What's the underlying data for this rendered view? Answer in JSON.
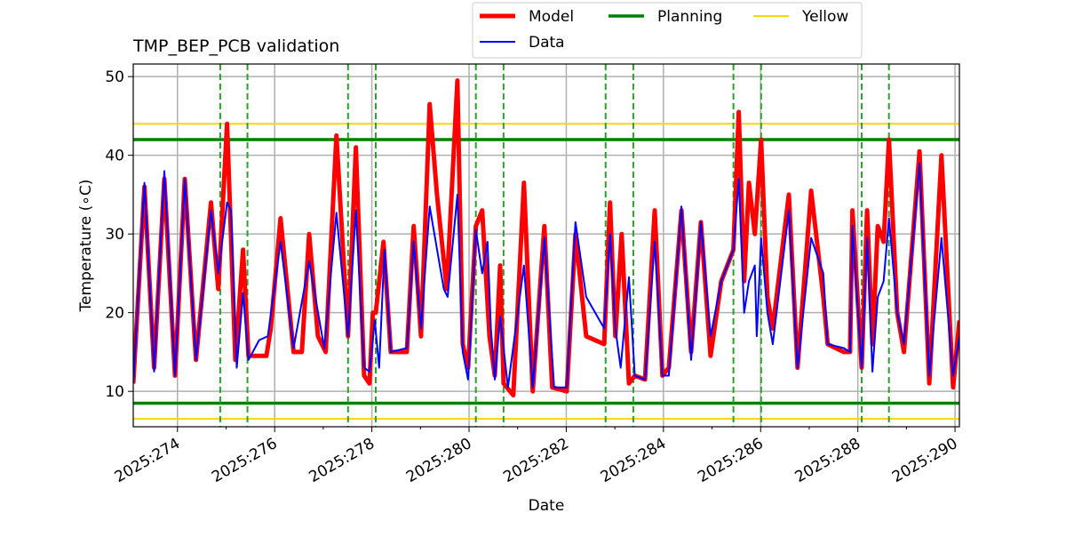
{
  "chart_data": {
    "type": "line",
    "title": "TMP_BEP_PCB validation",
    "xlabel": "Date",
    "ylabel": "Temperature ($^\\circ$C)",
    "ylabel_display": "Temperature (∘C)",
    "xlim": [
      273.09,
      290.09
    ],
    "ylim": [
      5.5,
      51.6
    ],
    "grid": true,
    "legend_position": "top-center-outside",
    "x_ticks": [
      274,
      276,
      278,
      280,
      282,
      284,
      286,
      288,
      290
    ],
    "x_tick_labels": [
      "2025:274",
      "2025:276",
      "2025:278",
      "2025:280",
      "2025:282",
      "2025:284",
      "2025:286",
      "2025:288",
      "2025:290"
    ],
    "y_ticks": [
      10,
      20,
      30,
      40,
      50
    ],
    "y_tick_labels": [
      "10",
      "20",
      "30",
      "40",
      "50"
    ],
    "legend": [
      {
        "label": "Model",
        "color": "#ff0000"
      },
      {
        "label": "Data",
        "color": "#0000ff"
      },
      {
        "label": "Planning",
        "color": "#008000"
      },
      {
        "label": "Yellow",
        "color": "#ffd700"
      }
    ],
    "limits": {
      "planning": [
        42.0,
        8.5
      ],
      "yellow": [
        44.0,
        6.5
      ],
      "planning_color": "#008000",
      "yellow_color": "#ffd700"
    },
    "event_lines": [
      274.88,
      275.44,
      277.51,
      278.08,
      280.14,
      280.71,
      282.81,
      283.38,
      285.44,
      286.01,
      288.08,
      288.64
    ],
    "event_color": "#2ca02c",
    "series": [
      {
        "name": "Model",
        "color": "#ff0000",
        "x": [
          273.09,
          273.32,
          273.52,
          273.73,
          273.95,
          274.15,
          274.38,
          274.69,
          274.84,
          275.02,
          275.19,
          275.35,
          275.46,
          275.83,
          275.92,
          276.12,
          276.39,
          276.56,
          276.71,
          276.89,
          277.05,
          277.27,
          277.51,
          277.67,
          277.84,
          277.95,
          278.02,
          278.08,
          278.24,
          278.39,
          278.72,
          278.86,
          279.01,
          279.19,
          279.34,
          279.54,
          279.76,
          279.87,
          279.98,
          280.14,
          280.27,
          280.42,
          280.53,
          280.64,
          280.71,
          280.91,
          281.13,
          281.31,
          281.55,
          281.71,
          282.01,
          282.19,
          282.41,
          282.78,
          282.9,
          283.01,
          283.14,
          283.29,
          283.41,
          283.62,
          283.82,
          283.98,
          284.11,
          284.37,
          284.57,
          284.77,
          284.97,
          285.19,
          285.44,
          285.55,
          285.66,
          285.76,
          285.88,
          286.01,
          286.14,
          286.25,
          286.58,
          286.76,
          287.04,
          287.29,
          287.38,
          287.71,
          287.84,
          287.89,
          288.08,
          288.19,
          288.3,
          288.41,
          288.53,
          288.64,
          288.81,
          288.95,
          289.27,
          289.47,
          289.72,
          289.96,
          290.09
        ],
        "y": [
          11,
          36,
          13,
          37,
          12,
          37,
          14,
          34,
          23,
          44,
          14,
          28,
          14.5,
          14.5,
          18,
          32,
          15,
          15,
          30,
          17,
          15,
          42.5,
          17,
          41,
          12,
          11,
          20,
          20,
          29,
          15,
          15,
          31,
          17,
          46.5,
          35,
          23,
          49.5,
          16,
          13,
          31,
          33,
          17,
          12,
          26,
          11,
          9.5,
          36.5,
          10,
          31,
          10.5,
          10,
          30,
          17,
          16,
          34,
          17,
          30,
          11,
          12,
          11.5,
          33,
          12,
          13,
          33,
          15,
          31.5,
          14.5,
          24,
          28,
          45.5,
          24,
          36.5,
          30,
          42,
          22,
          18,
          35,
          13,
          35.5,
          22,
          16,
          15,
          15,
          33,
          13,
          33,
          16,
          31,
          29,
          42,
          20,
          15,
          40.5,
          11,
          40,
          10.5,
          19
        ]
      },
      {
        "name": "Data",
        "color": "#0000ff",
        "x": [
          273.09,
          273.32,
          273.52,
          273.73,
          273.95,
          274.15,
          274.38,
          274.69,
          274.84,
          275.02,
          275.1,
          275.22,
          275.35,
          275.46,
          275.68,
          275.86,
          276.12,
          276.39,
          276.71,
          277.02,
          277.27,
          277.51,
          277.67,
          277.84,
          277.95,
          278.06,
          278.15,
          278.26,
          278.39,
          278.72,
          278.86,
          279.01,
          279.19,
          279.48,
          279.56,
          279.76,
          279.87,
          279.98,
          280.14,
          280.27,
          280.38,
          280.45,
          280.53,
          280.64,
          280.8,
          281.13,
          281.31,
          281.55,
          281.75,
          282.01,
          282.19,
          282.41,
          282.78,
          282.9,
          283.01,
          283.12,
          283.29,
          283.41,
          283.62,
          283.82,
          283.98,
          284.11,
          284.37,
          284.57,
          284.77,
          284.97,
          285.19,
          285.44,
          285.55,
          285.66,
          285.76,
          285.88,
          285.92,
          286.01,
          286.14,
          286.25,
          286.58,
          286.76,
          287.04,
          287.29,
          287.38,
          287.71,
          287.84,
          287.89,
          288.08,
          288.19,
          288.3,
          288.41,
          288.53,
          288.64,
          288.81,
          288.95,
          289.27,
          289.47,
          289.72,
          289.96,
          290.09
        ],
        "y": [
          11,
          36.5,
          12.5,
          38,
          12,
          37,
          14,
          33,
          25,
          34,
          33,
          13,
          22.5,
          14,
          16.5,
          17,
          29,
          15.5,
          26.5,
          15.5,
          32.7,
          17,
          33,
          13,
          12.5,
          19,
          13,
          28,
          15,
          15.5,
          29,
          18,
          33.5,
          23,
          22,
          35,
          15,
          11.5,
          30.5,
          25,
          29,
          18,
          11.5,
          19.5,
          10.5,
          26,
          10.5,
          29.5,
          10.5,
          10.5,
          31.5,
          22,
          18,
          30,
          18,
          13,
          24.5,
          12,
          11.5,
          29,
          12,
          12,
          33.5,
          14,
          31.5,
          17,
          24,
          28,
          37,
          20,
          24,
          26,
          17,
          29.5,
          20,
          16,
          33,
          13,
          29.5,
          25,
          16,
          15.5,
          15,
          31,
          13,
          29.5,
          12.5,
          22,
          24,
          32,
          20,
          16,
          39,
          12,
          29.5,
          12,
          17
        ]
      }
    ]
  }
}
